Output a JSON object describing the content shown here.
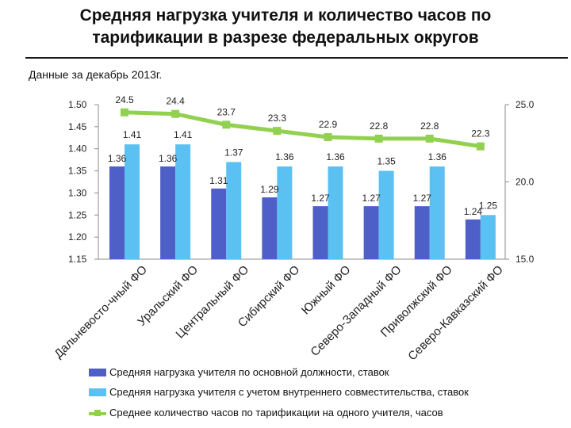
{
  "header": {
    "title_line1": "Средняя нагрузка учителя и количество часов по",
    "title_line2": "тарификации в разрезе федеральных округов",
    "subtitle": "Данные за декабрь 2013г."
  },
  "chart_data": {
    "type": "bar",
    "categories": [
      "Дальневосто-чный ФО",
      "Уральский ФО",
      "Центральный ФО",
      "Сибирский ФО",
      "Южный ФО",
      "Северо-Западный ФО",
      "Приволжский ФО",
      "Северо-Кавказский ФО"
    ],
    "series": [
      {
        "name": "Средняя нагрузка учителя по основной должности, ставок",
        "type": "bar",
        "axis": "left",
        "color": "#4f5fc8",
        "values": [
          1.36,
          1.36,
          1.31,
          1.29,
          1.27,
          1.27,
          1.27,
          1.24
        ]
      },
      {
        "name": "Средняя нагрузка учителя с учетом внутреннего совместительства, ставок",
        "type": "bar",
        "axis": "left",
        "color": "#5bc1f2",
        "values": [
          1.41,
          1.41,
          1.37,
          1.36,
          1.36,
          1.35,
          1.36,
          1.25
        ]
      },
      {
        "name": "Среднее количество часов по тарификации на одного учителя, часов",
        "type": "line",
        "axis": "right",
        "color": "#92d050",
        "values": [
          24.5,
          24.4,
          23.7,
          23.3,
          22.9,
          22.8,
          22.8,
          22.3
        ]
      }
    ],
    "y_left": {
      "min": 1.15,
      "max": 1.5,
      "ticks": [
        "1.50",
        "1.45",
        "1.40",
        "1.35",
        "1.30",
        "1.25",
        "1.20",
        "1.15"
      ]
    },
    "y_right": {
      "min": 15.0,
      "max": 25.0,
      "ticks": [
        "25.0",
        "20.0",
        "15.0"
      ]
    },
    "grid": false,
    "legend_position": "bottom"
  }
}
